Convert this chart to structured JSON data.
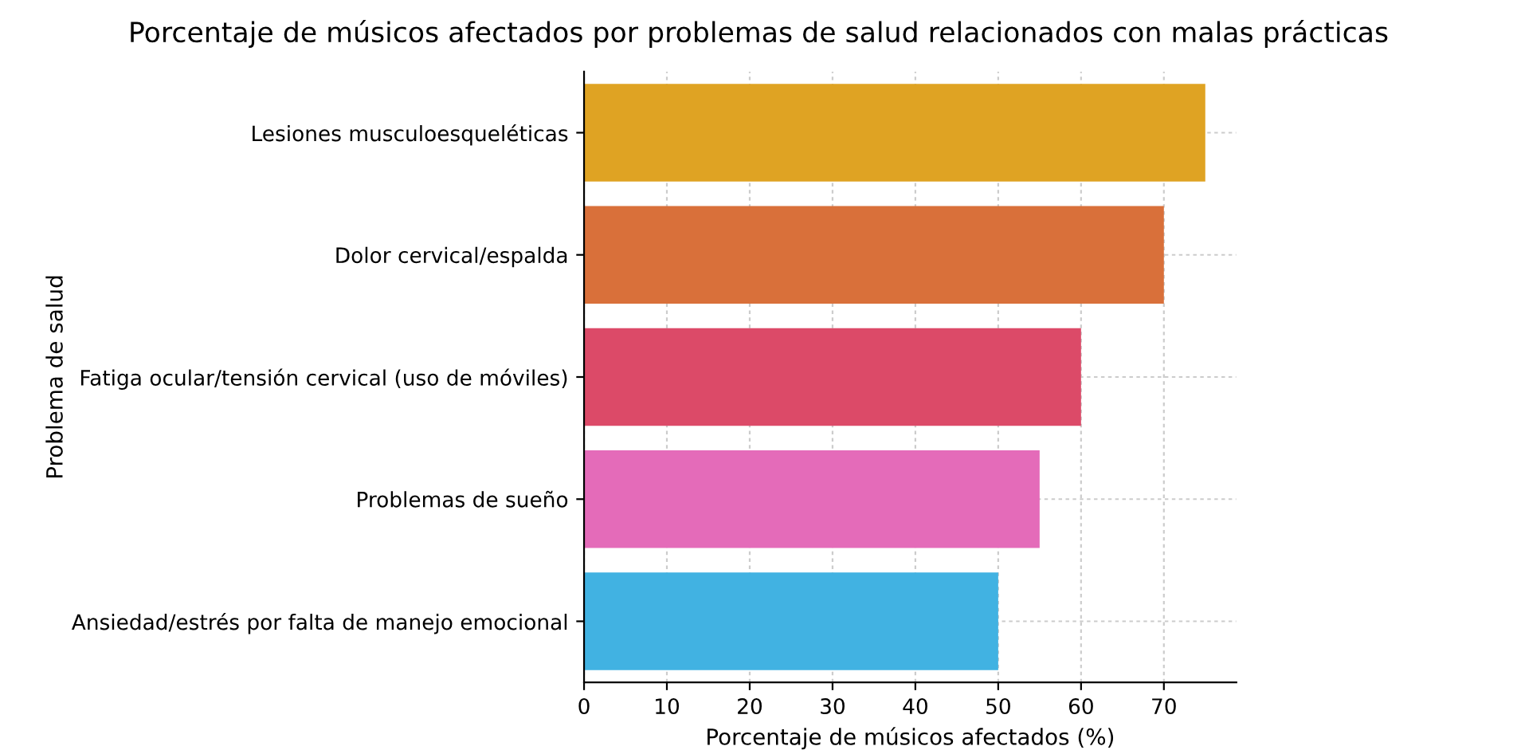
{
  "chart_data": {
    "type": "bar",
    "orientation": "horizontal",
    "title": "Porcentaje de músicos afectados por problemas de salud relacionados con malas prácticas",
    "xlabel": "Porcentaje de músicos afectados (%)",
    "ylabel": "Problema de salud",
    "categories": [
      "Lesiones musculoesqueléticas",
      "Dolor cervical/espalda",
      "Fatiga ocular/tensión cervical (uso de móviles)",
      "Problemas de sueño",
      "Ansiedad/estrés por falta de manejo emocional"
    ],
    "values": [
      75,
      70,
      60,
      55,
      50
    ],
    "colors": [
      "#dfa323",
      "#d9703a",
      "#dc4a68",
      "#e46bb9",
      "#41b2e2"
    ],
    "xlim": [
      0,
      78.75
    ],
    "xticks": [
      0,
      10,
      20,
      30,
      40,
      50,
      60,
      70
    ],
    "grid": true
  }
}
